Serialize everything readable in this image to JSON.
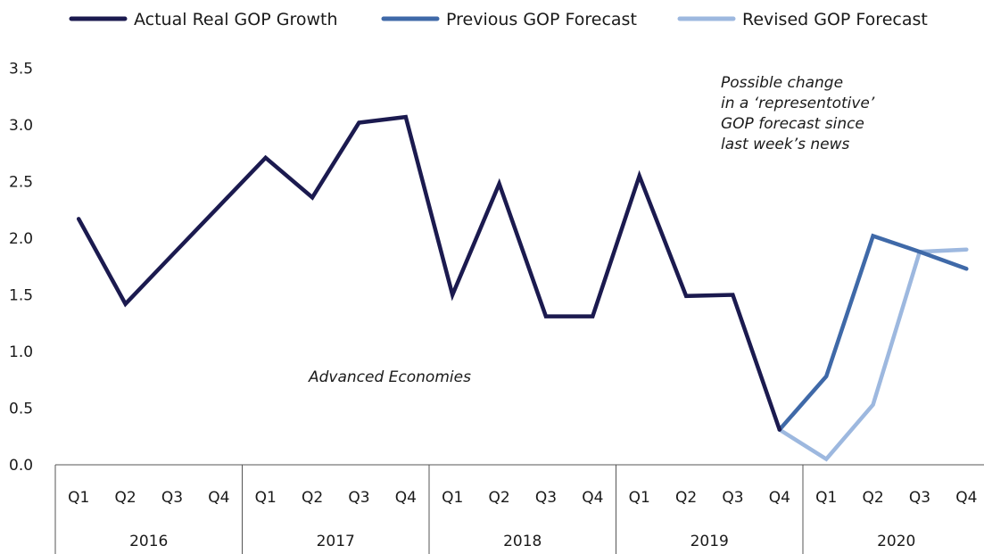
{
  "chart_data": {
    "type": "line",
    "x_quarters": [
      "Q1",
      "Q2",
      "Q3",
      "Q4",
      "Q1",
      "Q2",
      "Q3",
      "Q4",
      "Q1",
      "Q2",
      "Q3",
      "Q4",
      "Q1",
      "Q2",
      "Q3",
      "Q4",
      "Q1",
      "Q2",
      "Q3",
      "Q4"
    ],
    "x_years": [
      "2016",
      "2017",
      "2018",
      "2019",
      "2020"
    ],
    "y_ticks": [
      "0.0",
      "0.5",
      "1.0",
      "1.5",
      "2.0",
      "2.5",
      "3.0",
      "3.5"
    ],
    "ylim": [
      0,
      3.5
    ],
    "legend_position": "top",
    "series": [
      {
        "name": "Actual Real GOP Growth",
        "color": "#1b1a4f",
        "start_index": 0,
        "values": [
          2.17,
          1.42,
          1.85,
          2.28,
          2.71,
          2.36,
          3.02,
          3.07,
          1.5,
          2.48,
          1.31,
          1.31,
          2.55,
          1.49,
          1.5,
          0.31
        ]
      },
      {
        "name": "Previous GOP Forecast",
        "color": "#3f69a8",
        "start_index": 15,
        "values": [
          0.31,
          0.78,
          2.02,
          1.88,
          1.73
        ]
      },
      {
        "name": "Revised GOP Forecast",
        "color": "#9db8df",
        "start_index": 15,
        "values": [
          0.31,
          0.05,
          0.53,
          1.88,
          1.9
        ]
      }
    ],
    "annotations": {
      "region_label": "Advanced Economies",
      "note_lines": [
        "Possible change",
        "in a ‘representotive’",
        "GOP forecast since",
        "last week’s news"
      ]
    }
  }
}
